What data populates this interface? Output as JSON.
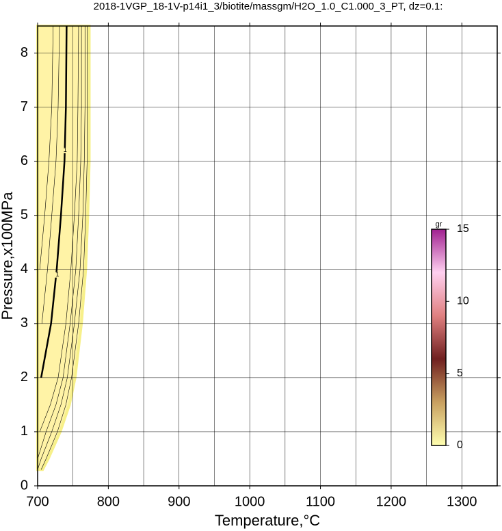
{
  "chart_data": {
    "type": "contour",
    "title": "2018-1VGP_18-1V-p14i1_3/biotite/massgm/H2O_1.0_C1.000_3_PT, dz=0.1:",
    "xlabel": "Temperature,°C",
    "ylabel": "Pressure,x100MPa",
    "xlim": [
      700,
      1350
    ],
    "ylim": [
      0,
      8.5
    ],
    "xticks": [
      700,
      800,
      900,
      1000,
      1100,
      1200,
      1300
    ],
    "yticks": [
      0,
      1,
      2,
      3,
      4,
      5,
      6,
      7,
      8
    ],
    "xgrid": [
      750,
      800,
      850,
      900,
      950,
      1000,
      1050,
      1100,
      1150,
      1200,
      1250,
      1300
    ],
    "ygrid": [
      1,
      2,
      3,
      4,
      5,
      6,
      7,
      8
    ],
    "grid": true,
    "fill_color": "#fff3a6",
    "fill_edge_color": "#f7f08a",
    "y": [
      0.3,
      0.5,
      1,
      1.5,
      2,
      3,
      4,
      5,
      6,
      7,
      8.5
    ],
    "field_edge_x": [
      707,
      715,
      732,
      745,
      753,
      762,
      768,
      771,
      773,
      773,
      773
    ],
    "contours": [
      {
        "level": 0.2,
        "x": [
          705,
          712,
          728,
          740,
          748,
          758,
          765,
          768,
          770,
          770,
          770
        ]
      },
      {
        "level": 0.4,
        "x": [
          700,
          705,
          720,
          733,
          742,
          752,
          760,
          764,
          766,
          767,
          767
        ]
      },
      {
        "level": 0.6,
        "x": [
          null,
          700,
          712,
          726,
          736,
          746,
          754,
          758,
          761,
          762,
          762
        ]
      },
      {
        "level": 0.8,
        "x": [
          null,
          null,
          703,
          718,
          729,
          740,
          747,
          752,
          756,
          757,
          758
        ]
      },
      {
        "level": 1,
        "x": [
          null,
          null,
          null,
          null,
          705,
          719,
          727,
          733,
          738,
          740,
          741
        ],
        "bold": true
      },
      {
        "level": 1.2,
        "x": [
          null,
          null,
          null,
          null,
          null,
          706,
          714,
          720,
          726,
          729,
          731
        ]
      },
      {
        "level": 1.4,
        "x": [
          null,
          null,
          null,
          null,
          null,
          null,
          703,
          710,
          716,
          720,
          722
        ]
      }
    ],
    "contour_labels": [
      {
        "text": "1",
        "x": 739,
        "y": 6.2
      },
      {
        "text": "1",
        "x": 728,
        "y": 3.9
      }
    ],
    "colorbar": {
      "label": "gr",
      "lim": [
        0,
        15
      ],
      "ticks": [
        0,
        5,
        10,
        15
      ],
      "colors": [
        "#ffffb0",
        "#c8a060",
        "#702020",
        "#e08080",
        "#ffd0f0",
        "#a02090"
      ]
    }
  }
}
